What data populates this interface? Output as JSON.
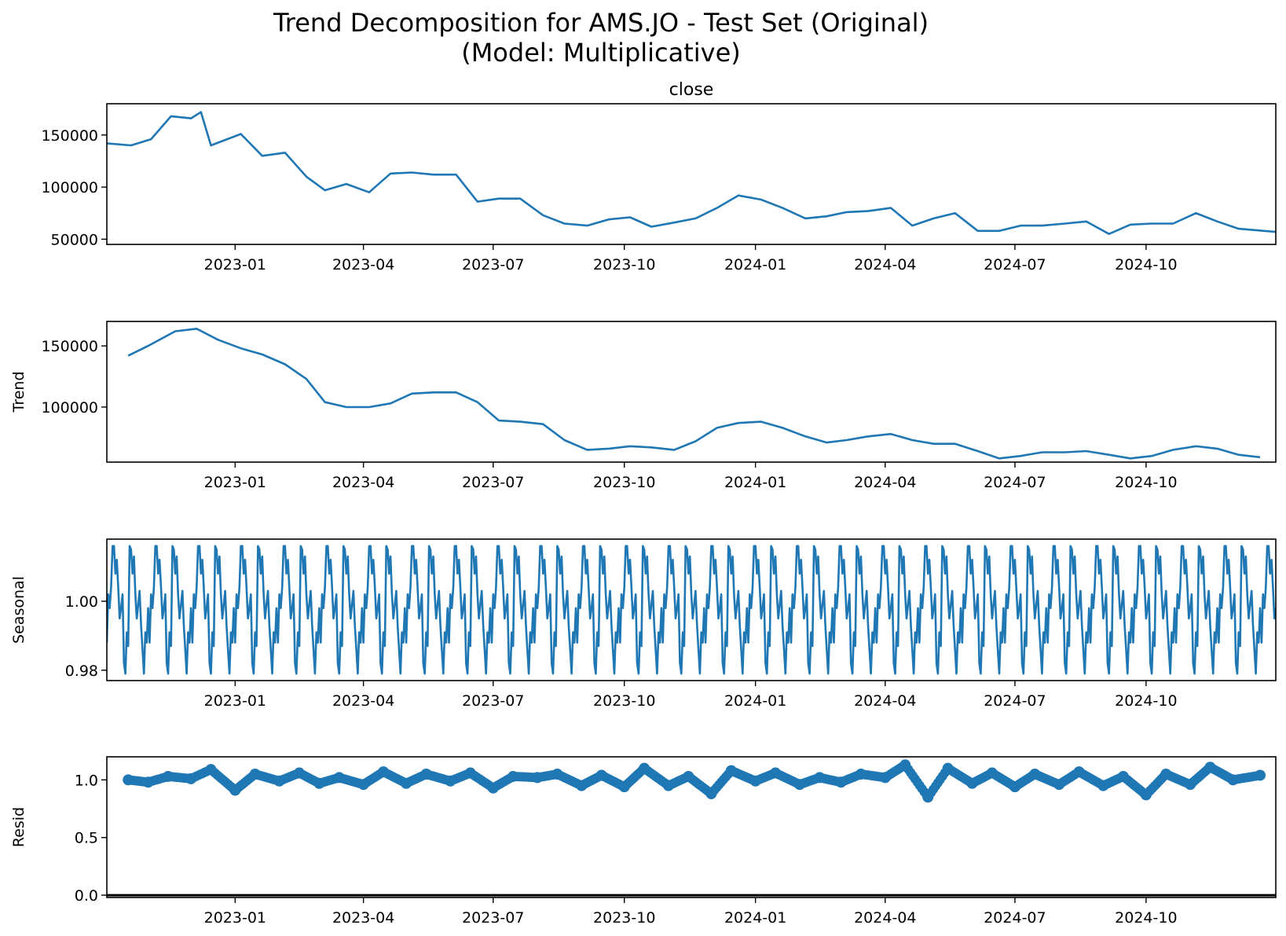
{
  "figure": {
    "suptitle_line1": "Trend Decomposition for AMS.JO - Test Set (Original)",
    "suptitle_line2": "(Model: Multiplicative)",
    "series_color": "#1f77b4",
    "x_tick_labels": [
      "2023-01",
      "2023-04",
      "2023-07",
      "2023-10",
      "2024-01",
      "2024-04",
      "2024-07",
      "2024-10"
    ]
  },
  "chart_data": [
    {
      "type": "line",
      "title": "close",
      "ylabel": "",
      "xlim": [
        "2022-10-03",
        "2024-12-31"
      ],
      "ylim": [
        45000,
        180000
      ],
      "yticks": [
        50000,
        100000,
        150000
      ],
      "ytick_labels": [
        "50000",
        "100000",
        "150000"
      ],
      "x": [
        "2022-10-03",
        "2022-10-20",
        "2022-11-03",
        "2022-11-17",
        "2022-12-01",
        "2022-12-08",
        "2022-12-15",
        "2023-01-05",
        "2023-01-20",
        "2023-02-05",
        "2023-02-20",
        "2023-03-05",
        "2023-03-20",
        "2023-04-05",
        "2023-04-20",
        "2023-05-05",
        "2023-05-20",
        "2023-06-05",
        "2023-06-20",
        "2023-07-05",
        "2023-07-20",
        "2023-08-05",
        "2023-08-20",
        "2023-09-05",
        "2023-09-20",
        "2023-10-05",
        "2023-10-20",
        "2023-11-05",
        "2023-11-20",
        "2023-12-05",
        "2023-12-20",
        "2024-01-05",
        "2024-01-20",
        "2024-02-05",
        "2024-02-20",
        "2024-03-05",
        "2024-03-20",
        "2024-04-05",
        "2024-04-20",
        "2024-05-05",
        "2024-05-20",
        "2024-06-05",
        "2024-06-20",
        "2024-07-05",
        "2024-07-20",
        "2024-08-05",
        "2024-08-20",
        "2024-09-05",
        "2024-09-20",
        "2024-10-05",
        "2024-10-20",
        "2024-11-05",
        "2024-11-20",
        "2024-12-05",
        "2024-12-31"
      ],
      "y": [
        142000,
        140000,
        146000,
        168000,
        166000,
        172000,
        140000,
        151000,
        130000,
        133000,
        110000,
        97000,
        103000,
        95000,
        113000,
        114000,
        112000,
        112000,
        86000,
        89000,
        89000,
        73000,
        65000,
        63000,
        69000,
        71000,
        62000,
        66000,
        70000,
        80000,
        92000,
        88000,
        80000,
        70000,
        72000,
        76000,
        77000,
        80000,
        63000,
        70000,
        75000,
        58000,
        58000,
        63000,
        63000,
        65000,
        67000,
        55000,
        64000,
        65000,
        65000,
        75000,
        67000,
        60000,
        57000
      ]
    },
    {
      "type": "line",
      "title": "",
      "ylabel": "Trend",
      "xlim": [
        "2022-10-03",
        "2024-12-31"
      ],
      "ylim": [
        55000,
        170000
      ],
      "yticks": [
        100000,
        150000
      ],
      "ytick_labels": [
        "100000",
        "150000"
      ],
      "x": [
        "2022-10-18",
        "2022-11-01",
        "2022-11-20",
        "2022-12-05",
        "2022-12-20",
        "2023-01-05",
        "2023-01-20",
        "2023-02-05",
        "2023-02-20",
        "2023-03-05",
        "2023-03-20",
        "2023-04-05",
        "2023-04-20",
        "2023-05-05",
        "2023-05-20",
        "2023-06-05",
        "2023-06-20",
        "2023-07-05",
        "2023-07-20",
        "2023-08-05",
        "2023-08-20",
        "2023-09-05",
        "2023-09-20",
        "2023-10-05",
        "2023-10-20",
        "2023-11-05",
        "2023-11-20",
        "2023-12-05",
        "2023-12-20",
        "2024-01-05",
        "2024-01-20",
        "2024-02-05",
        "2024-02-20",
        "2024-03-05",
        "2024-03-20",
        "2024-04-05",
        "2024-04-20",
        "2024-05-05",
        "2024-05-20",
        "2024-06-05",
        "2024-06-20",
        "2024-07-05",
        "2024-07-20",
        "2024-08-05",
        "2024-08-20",
        "2024-09-05",
        "2024-09-20",
        "2024-10-05",
        "2024-10-20",
        "2024-11-05",
        "2024-11-20",
        "2024-12-05",
        "2024-12-20"
      ],
      "y": [
        142000,
        150000,
        162000,
        164000,
        155000,
        148000,
        143000,
        135000,
        123000,
        104000,
        100000,
        100000,
        103000,
        111000,
        112000,
        112000,
        104000,
        89000,
        88000,
        86000,
        73000,
        65000,
        66000,
        68000,
        67000,
        65000,
        72000,
        83000,
        87000,
        88000,
        83000,
        76000,
        71000,
        73000,
        76000,
        78000,
        73000,
        70000,
        70000,
        64000,
        58000,
        60000,
        63000,
        63000,
        64000,
        61000,
        58000,
        60000,
        65000,
        68000,
        66000,
        61000,
        59000
      ]
    },
    {
      "type": "line",
      "title": "",
      "ylabel": "Seasonal",
      "xlim": [
        "2022-10-03",
        "2024-12-31"
      ],
      "ylim": [
        0.977,
        1.018
      ],
      "yticks": [
        0.98,
        1.0
      ],
      "ytick_labels": [
        "0.98",
        "1.00"
      ],
      "period_days": 30,
      "x_days_within_period": [
        0,
        1,
        2,
        3,
        4,
        5,
        6,
        7,
        8,
        9,
        10,
        11,
        12,
        13,
        14,
        15,
        16,
        17,
        18,
        19,
        20,
        21,
        22,
        23,
        24,
        25,
        26,
        27,
        28,
        29
      ],
      "y": [
        0.988,
        1.002,
        0.998,
        1.004,
        1.016,
        1.016,
        1.008,
        1.012,
        1.004,
        0.995,
        0.998,
        1.002,
        0.982,
        0.979,
        0.991,
        0.987,
        1.016,
        1.015,
        1.008,
        1.013,
        1.002,
        0.995,
        0.999,
        1.003,
        0.993,
        0.986,
        0.979,
        0.991,
        0.988,
        0.998
      ]
    },
    {
      "type": "scatter",
      "title": "",
      "ylabel": "Resid",
      "xlim": [
        "2022-10-03",
        "2024-12-31"
      ],
      "ylim": [
        -0.02,
        1.2
      ],
      "yticks": [
        0.0,
        0.5,
        1.0
      ],
      "ytick_labels": [
        "0.0",
        "0.5",
        "1.0"
      ],
      "baseline": 0.0,
      "x": [
        "2022-10-18",
        "2022-11-01",
        "2022-11-15",
        "2022-12-01",
        "2022-12-15",
        "2023-01-01",
        "2023-01-15",
        "2023-02-01",
        "2023-02-15",
        "2023-03-01",
        "2023-03-15",
        "2023-04-01",
        "2023-04-15",
        "2023-05-01",
        "2023-05-15",
        "2023-06-01",
        "2023-06-15",
        "2023-07-01",
        "2023-07-15",
        "2023-08-01",
        "2023-08-15",
        "2023-09-01",
        "2023-09-15",
        "2023-10-01",
        "2023-10-15",
        "2023-11-01",
        "2023-11-15",
        "2023-12-01",
        "2023-12-15",
        "2024-01-01",
        "2024-01-15",
        "2024-02-01",
        "2024-02-15",
        "2024-03-01",
        "2024-03-15",
        "2024-04-01",
        "2024-04-15",
        "2024-05-01",
        "2024-05-15",
        "2024-06-01",
        "2024-06-15",
        "2024-07-01",
        "2024-07-15",
        "2024-08-01",
        "2024-08-15",
        "2024-09-01",
        "2024-09-15",
        "2024-10-01",
        "2024-10-15",
        "2024-11-01",
        "2024-11-15",
        "2024-12-01",
        "2024-12-20"
      ],
      "y": [
        1.0,
        0.98,
        1.03,
        1.01,
        1.09,
        0.91,
        1.05,
        0.99,
        1.06,
        0.97,
        1.02,
        0.96,
        1.07,
        0.97,
        1.05,
        0.99,
        1.06,
        0.93,
        1.03,
        1.02,
        1.05,
        0.95,
        1.04,
        0.94,
        1.1,
        0.95,
        1.03,
        0.88,
        1.08,
        0.99,
        1.06,
        0.96,
        1.02,
        0.98,
        1.05,
        1.02,
        1.13,
        0.85,
        1.1,
        0.97,
        1.06,
        0.94,
        1.05,
        0.96,
        1.07,
        0.95,
        1.03,
        0.87,
        1.05,
        0.96,
        1.11,
        1.0,
        1.04
      ]
    }
  ]
}
